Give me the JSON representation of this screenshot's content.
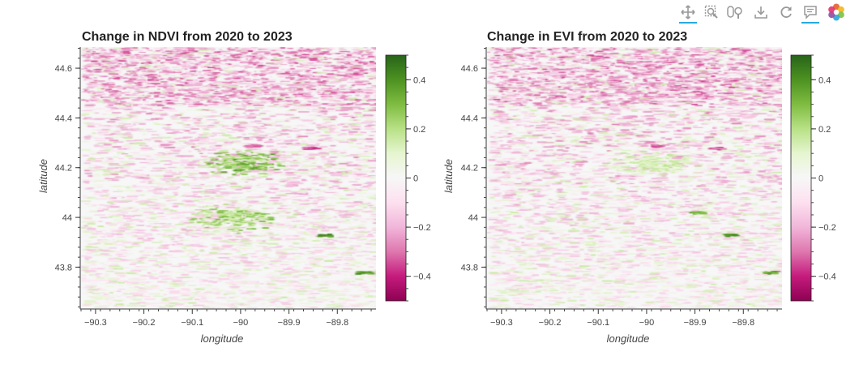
{
  "toolbar": {
    "tools": [
      {
        "name": "pan-tool",
        "icon": "pan-icon",
        "active": true
      },
      {
        "name": "box-zoom-tool",
        "icon": "box-zoom-icon",
        "active": false
      },
      {
        "name": "wheel-zoom-tool",
        "icon": "wheel-zoom-icon",
        "active": false
      },
      {
        "name": "save-tool",
        "icon": "download-icon",
        "active": false
      },
      {
        "name": "reset-tool",
        "icon": "reset-icon",
        "active": false
      },
      {
        "name": "hover-tool",
        "icon": "hover-icon",
        "active": true
      },
      {
        "name": "bokeh-logo",
        "icon": "bokeh-logo-icon",
        "active": false
      }
    ]
  },
  "chart_data": [
    {
      "type": "heatmap",
      "title": "Change in NDVI from 2020 to 2023",
      "xlabel": "longitude",
      "ylabel": "latitude",
      "xlim": [
        -90.33,
        -89.72
      ],
      "ylim": [
        43.635,
        44.685
      ],
      "xticks": [
        -90.3,
        -90.2,
        -90.1,
        -90.0,
        -89.9,
        -89.8
      ],
      "xtick_labels": [
        "−90.3",
        "−90.2",
        "−90.1",
        "−90",
        "−89.9",
        "−89.8"
      ],
      "yticks": [
        43.8,
        44.0,
        44.2,
        44.4,
        44.6
      ],
      "ytick_labels": [
        "43.8",
        "44",
        "44.2",
        "44.4",
        "44.6"
      ],
      "colorbar": {
        "colormap": "PiYG",
        "range": [
          -0.5,
          0.5
        ],
        "ticks": [
          0.4,
          0.2,
          0,
          -0.2,
          -0.4
        ],
        "tick_labels": [
          "0.4",
          "0.2",
          "0",
          "−0.2",
          "−0.4"
        ],
        "colors": [
          "#8e0152",
          "#c51b7d",
          "#de77ae",
          "#f1b6da",
          "#fde0ef",
          "#f7f7f7",
          "#e6f5d0",
          "#b8e186",
          "#7fbc41",
          "#4d9221",
          "#276419"
        ]
      },
      "features": [
        {
          "type": "green-band",
          "lon": -90.0,
          "lat": 44.22,
          "value": 0.3
        },
        {
          "type": "green-band",
          "lon": -90.02,
          "lat": 44.0,
          "value": 0.25
        },
        {
          "type": "pink-spot",
          "lon": -89.86,
          "lat": 44.28,
          "value": -0.4
        },
        {
          "type": "pink-spot",
          "lon": -89.98,
          "lat": 44.29,
          "value": -0.35
        },
        {
          "type": "green-spot",
          "lon": -89.83,
          "lat": 43.93,
          "value": 0.45
        },
        {
          "type": "green-spot",
          "lon": -89.75,
          "lat": 43.78,
          "value": 0.4
        }
      ]
    },
    {
      "type": "heatmap",
      "title": "Change in EVI from 2020 to 2023",
      "xlabel": "longitude",
      "ylabel": "latitude",
      "xlim": [
        -90.33,
        -89.72
      ],
      "ylim": [
        43.635,
        44.685
      ],
      "xticks": [
        -90.3,
        -90.2,
        -90.1,
        -90.0,
        -89.9,
        -89.8
      ],
      "xtick_labels": [
        "−90.3",
        "−90.2",
        "−90.1",
        "−90",
        "−89.9",
        "−89.8"
      ],
      "yticks": [
        43.8,
        44.0,
        44.2,
        44.4,
        44.6
      ],
      "ytick_labels": [
        "43.8",
        "44",
        "44.2",
        "44.4",
        "44.6"
      ],
      "colorbar": {
        "colormap": "PiYG",
        "range": [
          -0.5,
          0.5
        ],
        "ticks": [
          0.4,
          0.2,
          0,
          -0.2,
          -0.4
        ],
        "tick_labels": [
          "0.4",
          "0.2",
          "0",
          "−0.2",
          "−0.4"
        ],
        "colors": [
          "#8e0152",
          "#c51b7d",
          "#de77ae",
          "#f1b6da",
          "#fde0ef",
          "#f7f7f7",
          "#e6f5d0",
          "#b8e186",
          "#7fbc41",
          "#4d9221",
          "#276419"
        ]
      },
      "features": [
        {
          "type": "green-band",
          "lon": -90.0,
          "lat": 44.22,
          "value": 0.15
        },
        {
          "type": "pink-spot",
          "lon": -89.86,
          "lat": 44.28,
          "value": -0.35
        },
        {
          "type": "pink-spot",
          "lon": -89.98,
          "lat": 44.29,
          "value": -0.35
        },
        {
          "type": "green-spot",
          "lon": -89.83,
          "lat": 43.93,
          "value": 0.45
        },
        {
          "type": "green-spot",
          "lon": -89.9,
          "lat": 44.02,
          "value": 0.35
        },
        {
          "type": "green-spot",
          "lon": -89.75,
          "lat": 43.78,
          "value": 0.4
        }
      ]
    }
  ]
}
